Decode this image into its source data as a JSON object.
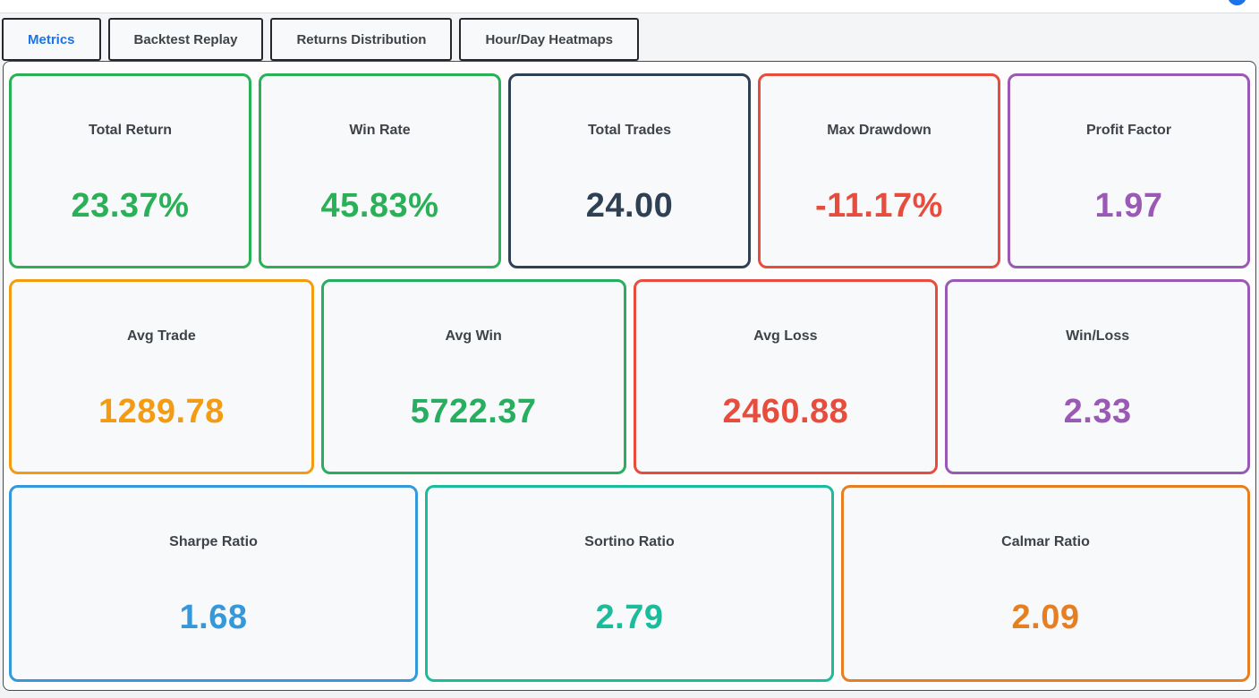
{
  "status_dot": {
    "color": "#1a73e8"
  },
  "tabs": [
    {
      "label": "Metrics",
      "active": true,
      "color": "#1a73e8"
    },
    {
      "label": "Backtest Replay",
      "active": false
    },
    {
      "label": "Returns Distribution",
      "active": false
    },
    {
      "label": "Hour/Day Heatmaps",
      "active": false
    }
  ],
  "metrics": {
    "rows": [
      [
        {
          "label": "Total Return",
          "value": "23.37%",
          "color": "#2ab158"
        },
        {
          "label": "Win Rate",
          "value": "45.83%",
          "color": "#2ab158"
        },
        {
          "label": "Total Trades",
          "value": "24.00",
          "color": "#2e4053"
        },
        {
          "label": "Max Drawdown",
          "value": "-11.17%",
          "color": "#e74c3c"
        },
        {
          "label": "Profit Factor",
          "value": "1.97",
          "color": "#9b59b6"
        }
      ],
      [
        {
          "label": "Avg Trade",
          "value": "1289.78",
          "color": "#f39c12"
        },
        {
          "label": "Avg Win",
          "value": "5722.37",
          "color": "#27ae60"
        },
        {
          "label": "Avg Loss",
          "value": "2460.88",
          "color": "#e74c3c"
        },
        {
          "label": "Win/Loss",
          "value": "2.33",
          "color": "#9b59b6"
        }
      ],
      [
        {
          "label": "Sharpe Ratio",
          "value": "1.68",
          "color": "#3498db"
        },
        {
          "label": "Sortino Ratio",
          "value": "2.79",
          "color": "#1abc9c"
        },
        {
          "label": "Calmar Ratio",
          "value": "2.09",
          "color": "#e67e22"
        }
      ]
    ]
  }
}
